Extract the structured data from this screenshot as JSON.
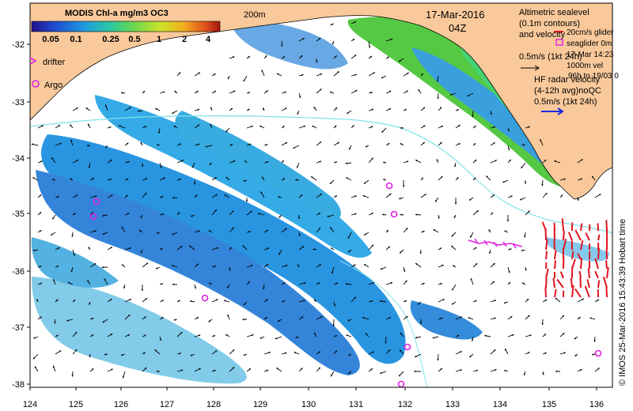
{
  "map": {
    "colorbar_title": "MODIS Chl-a mg/m3 OC3",
    "colorbar_ticks": [
      "0.05",
      "0.1",
      "0.25",
      "0.5",
      "1",
      "2",
      "4"
    ],
    "colorbar_colors": [
      "#24108a",
      "#1f4fd1",
      "#1e9be0",
      "#2cc9a0",
      "#6fd84a",
      "#c9e32c",
      "#f2b11f",
      "#e0531c",
      "#a3160f"
    ],
    "isobath_label": "200m",
    "date": "17-Mar-2016",
    "time": "04Z",
    "drifter_label": "drifter",
    "argo_label": "Argo",
    "altimetric_lines": [
      "Altimetric sealevel",
      "(0.1m contours)",
      "and velocity"
    ],
    "glider_lines": [
      "20cm/s glider",
      "seaglider 0m",
      "17-Mar 14:23",
      "1000m vel",
      "96h to 19/03 0"
    ],
    "alt_speed_label": "0.5m/s (1kt 24h)",
    "hf_radar_lines": [
      "HF radar velocity",
      "(4-12h avg)noQC",
      "0.5m/s (1kt 24h)"
    ],
    "copyright": "© IMOS 25-Mar-2016 15:43:39 Hobart time",
    "x_ticks": [
      "124",
      "125",
      "126",
      "127",
      "128",
      "129",
      "130",
      "131",
      "132",
      "133",
      "134",
      "135",
      "136"
    ],
    "y_ticks": [
      "-32",
      "-33",
      "-34",
      "-35",
      "-36",
      "-37",
      "-38"
    ],
    "colors": {
      "land": "#f9c99b",
      "argo": "#e020e0",
      "hf_radar": "#e0141e",
      "isobath": "#7fe3e8",
      "hf_radar_legend": "#1a2ae0"
    }
  }
}
